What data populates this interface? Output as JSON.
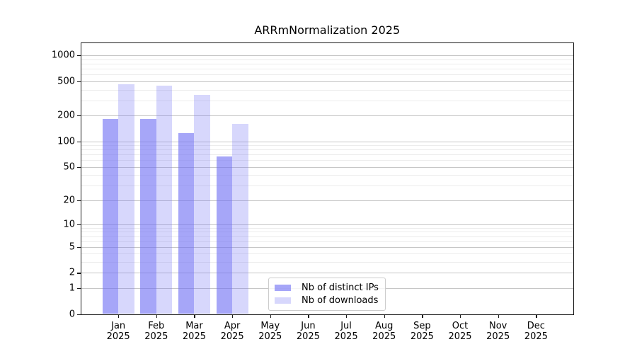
{
  "title": "ARRmNormalization 2025",
  "chart_data": {
    "type": "bar",
    "title": "ARRmNormalization 2025",
    "x": {
      "categories": [
        "Jan",
        "Feb",
        "Mar",
        "Apr",
        "May",
        "Jun",
        "Jul",
        "Aug",
        "Sep",
        "Oct",
        "Nov",
        "Dec"
      ],
      "year_label": "2025",
      "xlim": [
        -1,
        12
      ]
    },
    "y": {
      "scale": "log10(value+1)",
      "ticks": [
        1000,
        500,
        200,
        100,
        50,
        20,
        10,
        5,
        2,
        1,
        0
      ],
      "minor_ticks": [
        3,
        4,
        6,
        7,
        8,
        9,
        30,
        40,
        60,
        70,
        80,
        90,
        300,
        400,
        600,
        700,
        800,
        900
      ],
      "ylim": [
        0,
        1400
      ]
    },
    "series": [
      {
        "name": "Nb of distinct IPs",
        "color": "rgba(112,112,243,0.62)",
        "color_hex": "#a8a8f2",
        "values": [
          182,
          183,
          124,
          66,
          0,
          0,
          0,
          0,
          0,
          0,
          0,
          0
        ]
      },
      {
        "name": "Nb of downloads",
        "color": "rgba(112,112,243,0.28)",
        "color_hex": "#d7d7f8",
        "values": [
          460,
          446,
          351,
          160,
          0,
          0,
          0,
          0,
          0,
          0,
          0,
          0
        ]
      }
    ],
    "grid": {
      "enabled": true,
      "major_color": "#c6c6c6",
      "minor_color": "#ececec"
    },
    "legend": {
      "position": "inside-bottom-center",
      "border_color": "#cccccc"
    },
    "bar_width_fraction": 0.42
  }
}
